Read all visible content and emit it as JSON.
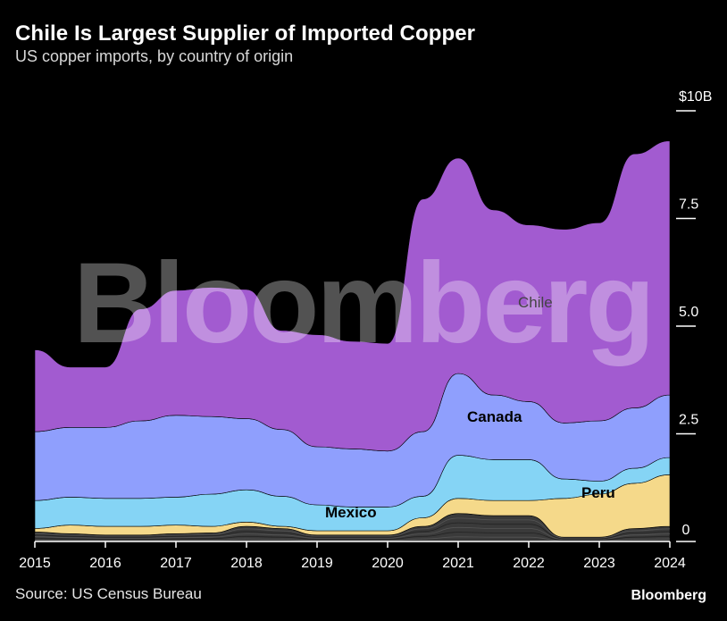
{
  "title": "Chile Is Largest Supplier of Imported Copper",
  "subtitle": "US copper imports, by country of origin",
  "source": "Source: US Census Bureau",
  "brand": "Bloomberg",
  "watermark": "Bloomberg",
  "chart_data": {
    "type": "area",
    "stacked": true,
    "x": [
      2015,
      2015.5,
      2016,
      2016.5,
      2017,
      2017.5,
      2018,
      2018.5,
      2019,
      2019.5,
      2020,
      2020.5,
      2021,
      2021.5,
      2022,
      2022.5,
      2023,
      2023.5,
      2024
    ],
    "x_ticks": [
      "2015",
      "2016",
      "2017",
      "2018",
      "2019",
      "2020",
      "2021",
      "2022",
      "2023",
      "2024"
    ],
    "y_ticks": [
      "$10B",
      "7.5",
      "5.0",
      "2.5",
      "0"
    ],
    "y_tick_values": [
      10,
      7.5,
      5,
      2.5,
      0
    ],
    "ylim": [
      0,
      10
    ],
    "grid": false,
    "legend": "inline",
    "series": [
      {
        "name": "",
        "color": "#3a3a3a",
        "values": [
          0.22,
          0.18,
          0.15,
          0.15,
          0.18,
          0.2,
          0.35,
          0.3,
          0.15,
          0.15,
          0.15,
          0.35,
          0.65,
          0.6,
          0.6,
          0.1,
          0.1,
          0.3,
          0.35
        ]
      },
      {
        "name": "",
        "color": "#f5d98a",
        "values": [
          0.08,
          0.2,
          0.2,
          0.2,
          0.2,
          0.15,
          0.1,
          0.05,
          0.1,
          0.1,
          0.1,
          0.2,
          0.35,
          0.35,
          0.35,
          0.9,
          1.0,
          1.05,
          1.2
        ]
      },
      {
        "name": "Mexico",
        "color": "#85d4f5",
        "values": [
          0.65,
          0.65,
          0.65,
          0.65,
          0.65,
          0.75,
          0.75,
          0.7,
          0.6,
          0.55,
          0.55,
          0.5,
          1.0,
          0.95,
          0.95,
          0.45,
          0.3,
          0.35,
          0.4
        ]
      },
      {
        "name": "Canada",
        "color": "#8f9ffd",
        "values": [
          1.6,
          1.62,
          1.65,
          1.8,
          1.9,
          1.8,
          1.65,
          1.55,
          1.35,
          1.35,
          1.3,
          1.5,
          1.9,
          1.5,
          1.35,
          1.3,
          1.4,
          1.4,
          1.45
        ]
      },
      {
        "name": "Chile",
        "color": "#a25bd0",
        "values": [
          1.9,
          1.4,
          1.4,
          2.6,
          2.9,
          3.0,
          3.0,
          2.3,
          2.6,
          2.5,
          2.5,
          5.4,
          5.0,
          4.3,
          4.1,
          4.5,
          4.6,
          5.9,
          5.9
        ]
      }
    ],
    "labels": {
      "chile": "Chile",
      "canada": "Canada",
      "mexico": "Mexico",
      "peru": "Peru"
    }
  }
}
